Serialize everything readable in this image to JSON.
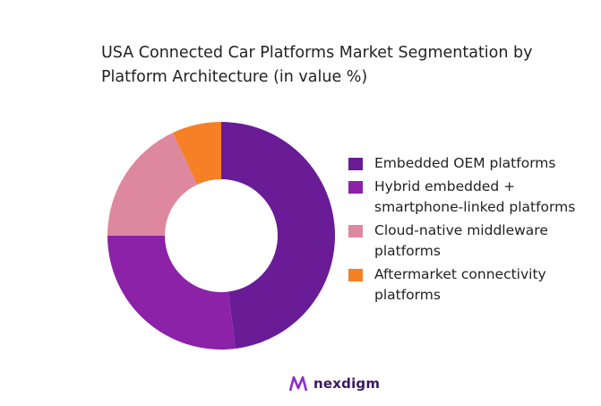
{
  "chart_data": {
    "type": "pie",
    "donut": true,
    "title": "USA Connected Car Platforms Market Segmentation by Platform Architecture (in value %)",
    "categories": [
      "Embedded OEM platforms",
      "Hybrid embedded + smartphone-linked platforms",
      "Cloud-native middleware platforms",
      "Aftermarket connectivity platforms"
    ],
    "values": [
      48,
      27,
      18,
      7
    ],
    "colors": [
      "#6a1b96",
      "#8b22a8",
      "#dd889e",
      "#f58025"
    ],
    "legend_position": "right"
  },
  "logo": {
    "text": "nexdigm",
    "color": "#7b2fbf"
  }
}
